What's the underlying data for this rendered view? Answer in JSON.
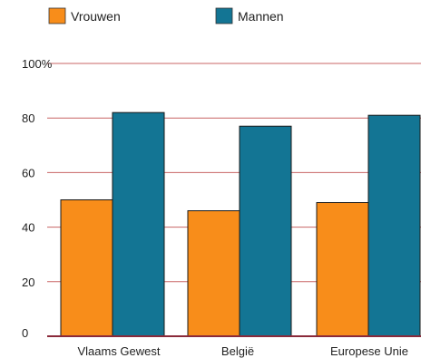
{
  "chart_data": {
    "type": "bar",
    "categories": [
      "Vlaams Gewest",
      "België",
      "Europese Unie"
    ],
    "series": [
      {
        "name": "Vrouwen",
        "values": [
          50,
          46,
          49
        ],
        "color": "#f88d1a"
      },
      {
        "name": "Mannen",
        "values": [
          82,
          77,
          81
        ],
        "color": "#137594"
      }
    ],
    "ylim": [
      0,
      100
    ],
    "yticks": [
      0,
      20,
      40,
      60,
      80,
      100
    ],
    "ytick_labels": [
      "0",
      "20",
      "40",
      "60",
      "80",
      "100%"
    ],
    "grid": true,
    "grid_color": "#c86464",
    "legend_position": "top-left",
    "title": "",
    "xlabel": "",
    "ylabel": ""
  }
}
